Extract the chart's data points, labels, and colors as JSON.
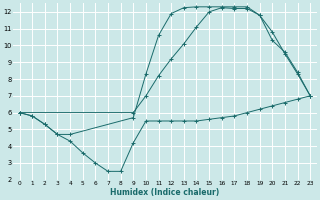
{
  "xlabel": "Humidex (Indice chaleur)",
  "bg_color": "#cce8e8",
  "grid_color": "#ffffff",
  "line_color": "#1a6b6b",
  "xlim": [
    -0.5,
    23.5
  ],
  "ylim": [
    2,
    12.5
  ],
  "yticks": [
    2,
    3,
    4,
    5,
    6,
    7,
    8,
    9,
    10,
    11,
    12
  ],
  "xticks": [
    0,
    1,
    2,
    3,
    4,
    5,
    6,
    7,
    8,
    9,
    10,
    11,
    12,
    13,
    14,
    15,
    16,
    17,
    18,
    19,
    20,
    21,
    22,
    23
  ],
  "line1_x": [
    0,
    1,
    2,
    3,
    4,
    5,
    6,
    7,
    8,
    9,
    10,
    11,
    12,
    13,
    14,
    15,
    16,
    17,
    18,
    19,
    20,
    21,
    22,
    23
  ],
  "line1_y": [
    6.0,
    5.8,
    5.3,
    4.7,
    4.3,
    3.6,
    3.0,
    2.5,
    2.5,
    4.2,
    5.5,
    5.5,
    5.5,
    5.5,
    5.5,
    5.6,
    5.7,
    5.8,
    6.0,
    6.2,
    6.4,
    6.6,
    6.8,
    7.0
  ],
  "line2_x": [
    0,
    1,
    2,
    3,
    4,
    9,
    10,
    11,
    12,
    13,
    14,
    15,
    16,
    17,
    18,
    19,
    20,
    21,
    22,
    23
  ],
  "line2_y": [
    6.0,
    5.8,
    5.3,
    4.7,
    4.7,
    5.7,
    8.3,
    10.6,
    11.9,
    12.25,
    12.3,
    12.3,
    12.3,
    12.3,
    12.3,
    11.8,
    10.8,
    9.5,
    8.3,
    7.0
  ],
  "line3_x": [
    0,
    9,
    10,
    11,
    12,
    13,
    14,
    15,
    16,
    17,
    18,
    19,
    20,
    21,
    22,
    23
  ],
  "line3_y": [
    6.0,
    6.0,
    7.0,
    8.2,
    9.2,
    10.1,
    11.1,
    12.0,
    12.25,
    12.2,
    12.2,
    11.8,
    10.3,
    9.6,
    8.4,
    7.0
  ]
}
